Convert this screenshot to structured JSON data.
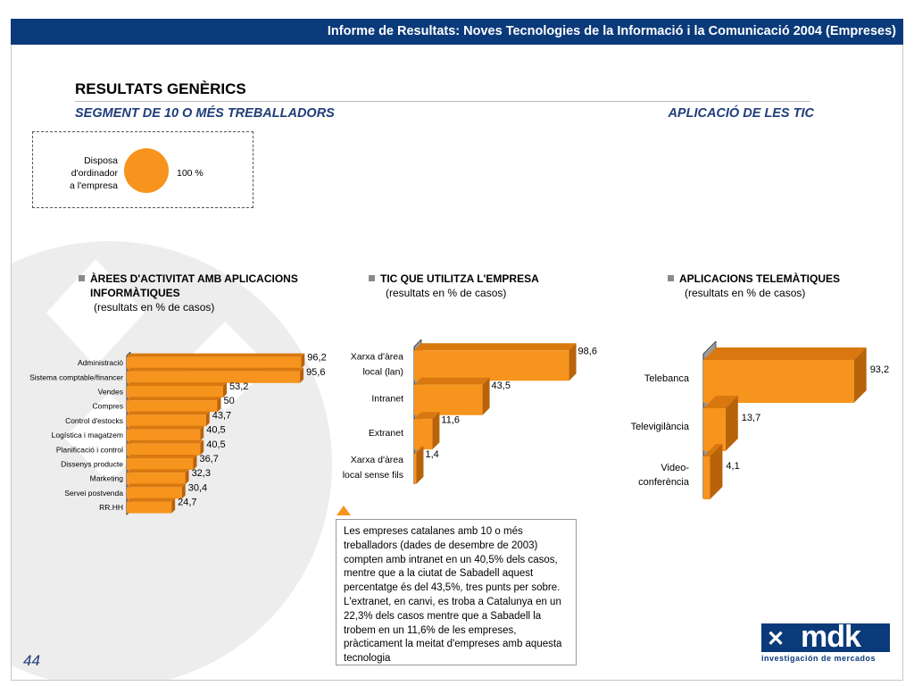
{
  "header": {
    "title": "Informe de Resultats: Noves Tecnologies de la Informació i la Comunicació 2004 (Empreses)"
  },
  "page": {
    "title": "RESULTATS GENÈRICS",
    "segment": "SEGMENT DE 10 O MÉS TREBALLADORS",
    "section": "APLICACIÓ DE LES TIC",
    "page_number": "44"
  },
  "ordinador": {
    "label_lines": [
      "Disposa",
      "d'ordinador",
      "a l'empresa"
    ],
    "value_label": "100 %"
  },
  "sections": {
    "areas": {
      "title_lines": [
        "ÀREES D'ACTIVITAT AMB APLICACIONS",
        "INFORMÀTIQUES"
      ],
      "subtitle": "(resultats en % de casos)"
    },
    "tic": {
      "title": "TIC QUE UTILITZA L'EMPRESA",
      "subtitle": "(resultats en % de casos)"
    },
    "telematiques": {
      "title": "APLICACIONS TELEMÀTIQUES",
      "subtitle": "(resultats en % de casos)"
    }
  },
  "note": "Les empreses catalanes amb 10 o més treballadors (dades de desembre de 2003) compten amb intranet en un 40,5% dels casos, mentre que a la ciutat de Sabadell aquest percentatge és del 43,5%, tres punts per sobre. L'extranet, en canvi, es troba a Catalunya en un 22,3% dels casos mentre que a Sabadell la trobem en un 11,6% de les empreses, pràcticament la meitat d'empreses amb aquesta tecnologia",
  "logo": {
    "text": "mdk",
    "subtitle": "investigación de mercados"
  },
  "colors": {
    "bar": "#f7941d",
    "bar_side": "#b8620a",
    "bar_top": "#d9780f",
    "header": "#0a3a7a",
    "accent_text": "#1f3d7a"
  },
  "chart_data": [
    {
      "type": "bar",
      "orientation": "horizontal",
      "categories": [
        "Administració",
        "Sistema comptable/financer",
        "Vendes",
        "Compres",
        "Control d'estocks",
        "Logística i magatzem",
        "Planificació i control",
        "Dissenys producte",
        "Marketing",
        "Servei postvenda",
        "RR.HH"
      ],
      "values": [
        96.2,
        95.6,
        53.2,
        50,
        43.7,
        40.5,
        40.5,
        36.7,
        32.3,
        30.4,
        24.7
      ],
      "value_labels": [
        "96,2",
        "95,6",
        "53,2",
        "50",
        "43,7",
        "40,5",
        "40,5",
        "36,7",
        "32,3",
        "30,4",
        "24,7"
      ],
      "xlim": [
        0,
        100
      ]
    },
    {
      "type": "bar",
      "orientation": "horizontal",
      "categories": [
        [
          "Xarxa d'àrea",
          "local (lan)"
        ],
        [
          "Intranet"
        ],
        [
          "Extranet"
        ],
        [
          "Xarxa d'àrea",
          "local sense fils"
        ]
      ],
      "values": [
        98.6,
        43.5,
        11.6,
        1.4
      ],
      "value_labels": [
        "98,6",
        "43,5",
        "11,6",
        "1,4"
      ],
      "xlim": [
        0,
        100
      ]
    },
    {
      "type": "bar",
      "orientation": "horizontal",
      "categories": [
        [
          "Telebanca"
        ],
        [
          "Televigilància"
        ],
        [
          "Video-",
          "conferència"
        ]
      ],
      "values": [
        93.2,
        13.7,
        4.1
      ],
      "value_labels": [
        "93,2",
        "13,7",
        "4,1"
      ],
      "xlim": [
        0,
        100
      ]
    }
  ]
}
